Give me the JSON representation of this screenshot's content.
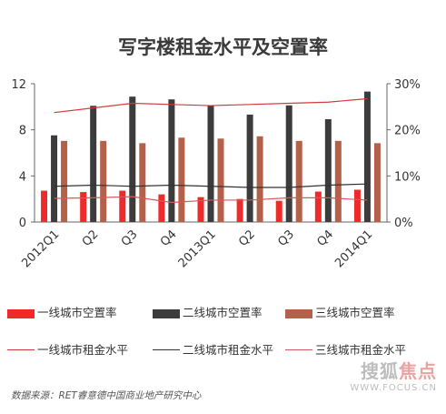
{
  "chart_data": {
    "type": "bar",
    "title": "写字楼租金水平及空置率",
    "categories": [
      "2012Q1",
      "Q2",
      "Q3",
      "Q4",
      "2013Q1",
      "Q2",
      "Q3",
      "Q4",
      "2014Q1"
    ],
    "ylim_left": [
      0,
      12
    ],
    "yticks_left": [
      "0",
      "4",
      "8",
      "12"
    ],
    "ylim_right": [
      0,
      30
    ],
    "yticks_right": [
      "0%",
      "10%",
      "20%",
      "30%"
    ],
    "bar_series": [
      {
        "name": "一线城市空置率",
        "color": "#ee2a2a",
        "values": [
          6.8,
          6.5,
          6.8,
          6.0,
          5.4,
          5.0,
          4.6,
          6.6,
          7.0
        ]
      },
      {
        "name": "二线城市空置率",
        "color": "#3c3c3c",
        "values": [
          18.8,
          25.2,
          27.2,
          26.6,
          25.3,
          23.3,
          25.3,
          22.3,
          28.3
        ]
      },
      {
        "name": "三线城市空置率",
        "color": "#b5614a",
        "values": [
          17.6,
          17.6,
          17.1,
          18.3,
          18.1,
          18.6,
          17.6,
          17.6,
          17.1
        ]
      }
    ],
    "line_series": [
      {
        "name": "一线城市租金水平",
        "color": "#d43a3a",
        "values": [
          9.5,
          9.9,
          10.3,
          10.2,
          10.1,
          10.2,
          10.3,
          10.4,
          10.7
        ]
      },
      {
        "name": "二线城市租金水平",
        "color": "#333333",
        "values": [
          3.1,
          3.2,
          3.1,
          3.2,
          3.1,
          3.0,
          3.0,
          3.2,
          3.3
        ]
      },
      {
        "name": "三线城市租金水平",
        "color": "#d45a5a",
        "values": [
          2.05,
          2.1,
          2.2,
          1.7,
          1.9,
          1.9,
          2.1,
          2.1,
          1.9
        ]
      }
    ],
    "grid": false
  },
  "legend": {
    "items": [
      {
        "label": "一线城市空置率",
        "color": "#ee2a2a",
        "kind": "bar"
      },
      {
        "label": "二线城市空置率",
        "color": "#3c3c3c",
        "kind": "bar"
      },
      {
        "label": "三线城市空置率",
        "color": "#b5614a",
        "kind": "bar"
      },
      {
        "label": "一线城市租金水平",
        "color": "#d43a3a",
        "kind": "line"
      },
      {
        "label": "二线城市租金水平",
        "color": "#333333",
        "kind": "line"
      },
      {
        "label": "三线城市租金水平",
        "color": "#d45a5a",
        "kind": "line"
      }
    ]
  },
  "source": "数据来源：RET睿意德中国商业地产研究中心",
  "watermark": {
    "name_gray": "搜狐",
    "name_red": "焦点",
    "sub": "WWW.FOCUS.CN"
  }
}
